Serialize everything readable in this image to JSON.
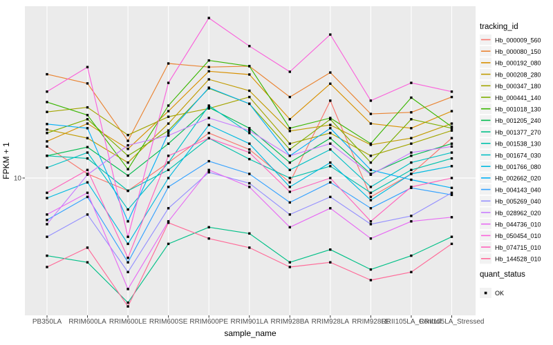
{
  "chart_data": {
    "type": "line",
    "title": "",
    "xlabel": "sample_name",
    "ylabel": "FPKM + 1",
    "y_scale": "log10",
    "ylim": [
      2,
      75
    ],
    "y_tick_labels": [
      "10"
    ],
    "grid": "major gridlines only: vertical at each sample, horizontal at 10",
    "legend": {
      "position": "right",
      "color_title": "tracking_id",
      "shape_title": "quant_status",
      "shape_items": [
        {
          "label": "OK",
          "marker": "black-square"
        }
      ]
    },
    "categories": [
      "PB350LA",
      "RRIM600LA",
      "RRIM600LE",
      "RRIM600SE",
      "RRIM600PE",
      "RRIM901LA",
      "RRIM928BA",
      "RRIM928LA",
      "RRIM928LE",
      "RRII105LA_Control",
      "RRII105LA_Stressed"
    ],
    "series": [
      {
        "name": "Hb_000009_560",
        "color": "#F8766D",
        "values": [
          14.5,
          10.5,
          8.6,
          12.0,
          17.0,
          14.0,
          9.5,
          24.9,
          8.0,
          10.5,
          16.0
        ]
      },
      {
        "name": "Hb_000080_150",
        "color": "#EA8331",
        "values": [
          34.0,
          30.5,
          15.5,
          38.6,
          37.0,
          37.4,
          26.0,
          34.7,
          21.3,
          21.7,
          26.0
        ]
      },
      {
        "name": "Hb_000192_080",
        "color": "#D89000",
        "values": [
          15.4,
          19.0,
          14.1,
          22.0,
          35.2,
          33.9,
          20.0,
          30.4,
          19.0,
          18.0,
          22.0
        ]
      },
      {
        "name": "Hb_000208_280",
        "color": "#C09B00",
        "values": [
          17.7,
          16.0,
          12.0,
          19.0,
          32.0,
          28.0,
          17.4,
          18.7,
          14.8,
          16.0,
          19.0
        ]
      },
      {
        "name": "Hb_000347_180",
        "color": "#A3A500",
        "values": [
          21.8,
          23.0,
          16.6,
          20.6,
          22.7,
          26.0,
          15.0,
          17.0,
          13.0,
          15.0,
          17.5
        ]
      },
      {
        "name": "Hb_000441_140",
        "color": "#7CAE00",
        "values": [
          17.0,
          20.0,
          13.0,
          17.5,
          28.8,
          24.0,
          14.0,
          20.0,
          12.0,
          20.0,
          18.0
        ]
      },
      {
        "name": "Hb_001018_130",
        "color": "#39B600",
        "values": [
          24.5,
          21.0,
          11.1,
          23.5,
          40.0,
          37.4,
          18.0,
          20.3,
          15.0,
          25.8,
          18.3
        ]
      },
      {
        "name": "Hb_001205_240",
        "color": "#00BB4E",
        "values": [
          13.0,
          14.4,
          10.3,
          15.0,
          23.0,
          18.0,
          12.0,
          16.0,
          10.5,
          13.0,
          15.0
        ]
      },
      {
        "name": "Hb_001377_270",
        "color": "#00C087",
        "values": [
          4.0,
          3.7,
          2.3,
          4.6,
          5.6,
          5.2,
          3.7,
          4.3,
          3.4,
          4.0,
          5.0
        ]
      },
      {
        "name": "Hb_001538_130",
        "color": "#00C1AB",
        "values": [
          13.0,
          12.6,
          8.6,
          11.0,
          16.0,
          12.5,
          10.0,
          11.5,
          8.4,
          11.0,
          12.6
        ]
      },
      {
        "name": "Hb_001674_030",
        "color": "#00BFC4",
        "values": [
          11.3,
          13.5,
          6.9,
          12.0,
          23.5,
          17.0,
          11.0,
          14.0,
          9.0,
          12.0,
          13.5
        ]
      },
      {
        "name": "Hb_001766_080",
        "color": "#00BAE0",
        "values": [
          7.9,
          9.5,
          4.6,
          10.0,
          18.7,
          15.0,
          9.0,
          12.0,
          7.7,
          10.5,
          11.5
        ]
      },
      {
        "name": "Hb_002662_020",
        "color": "#00B0F6",
        "values": [
          18.9,
          18.0,
          6.0,
          17.0,
          29.0,
          24.0,
          13.0,
          18.0,
          11.0,
          9.8,
          8.9
        ]
      },
      {
        "name": "Hb_004143_040",
        "color": "#35A2FF",
        "values": [
          6.1,
          8.0,
          3.7,
          9.0,
          12.2,
          10.5,
          7.5,
          9.5,
          7.0,
          8.9,
          8.2
        ]
      },
      {
        "name": "Hb_005269_040",
        "color": "#9590FF",
        "values": [
          5.0,
          6.5,
          3.3,
          7.0,
          10.7,
          9.4,
          6.5,
          8.0,
          5.8,
          6.4,
          8.4
        ]
      },
      {
        "name": "Hb_028962_020",
        "color": "#C77CFF",
        "values": [
          5.8,
          10.4,
          14.7,
          16.5,
          20.3,
          17.5,
          13.0,
          15.0,
          10.4,
          13.5,
          14.5
        ]
      },
      {
        "name": "Hb_044736_010",
        "color": "#E76BF3",
        "values": [
          6.5,
          8.4,
          2.7,
          6.0,
          11.0,
          9.0,
          5.6,
          7.0,
          4.9,
          6.0,
          6.3
        ]
      },
      {
        "name": "Hb_050454_010",
        "color": "#FA62DB",
        "values": [
          27.7,
          37.0,
          5.0,
          30.7,
          66.0,
          47.4,
          35.0,
          54.3,
          24.9,
          30.7,
          27.7
        ]
      },
      {
        "name": "Hb_074715_010",
        "color": "#FF62BC",
        "values": [
          8.4,
          11.0,
          3.9,
          13.0,
          16.0,
          13.5,
          8.5,
          10.0,
          6.0,
          9.0,
          10.0
        ]
      },
      {
        "name": "Hb_144528_010",
        "color": "#FF6A98",
        "values": [
          3.5,
          4.4,
          2.2,
          5.9,
          4.9,
          4.4,
          3.5,
          3.7,
          3.0,
          3.3,
          4.6
        ]
      }
    ],
    "style": {
      "panel_bg": "#EBEBEB",
      "grid_color": "#FFFFFF",
      "marker_color": "#000000",
      "legend_key_bg": "#F2F2F2",
      "tick_color": "#333333",
      "tick_text_color": "#4D4D4D"
    }
  }
}
